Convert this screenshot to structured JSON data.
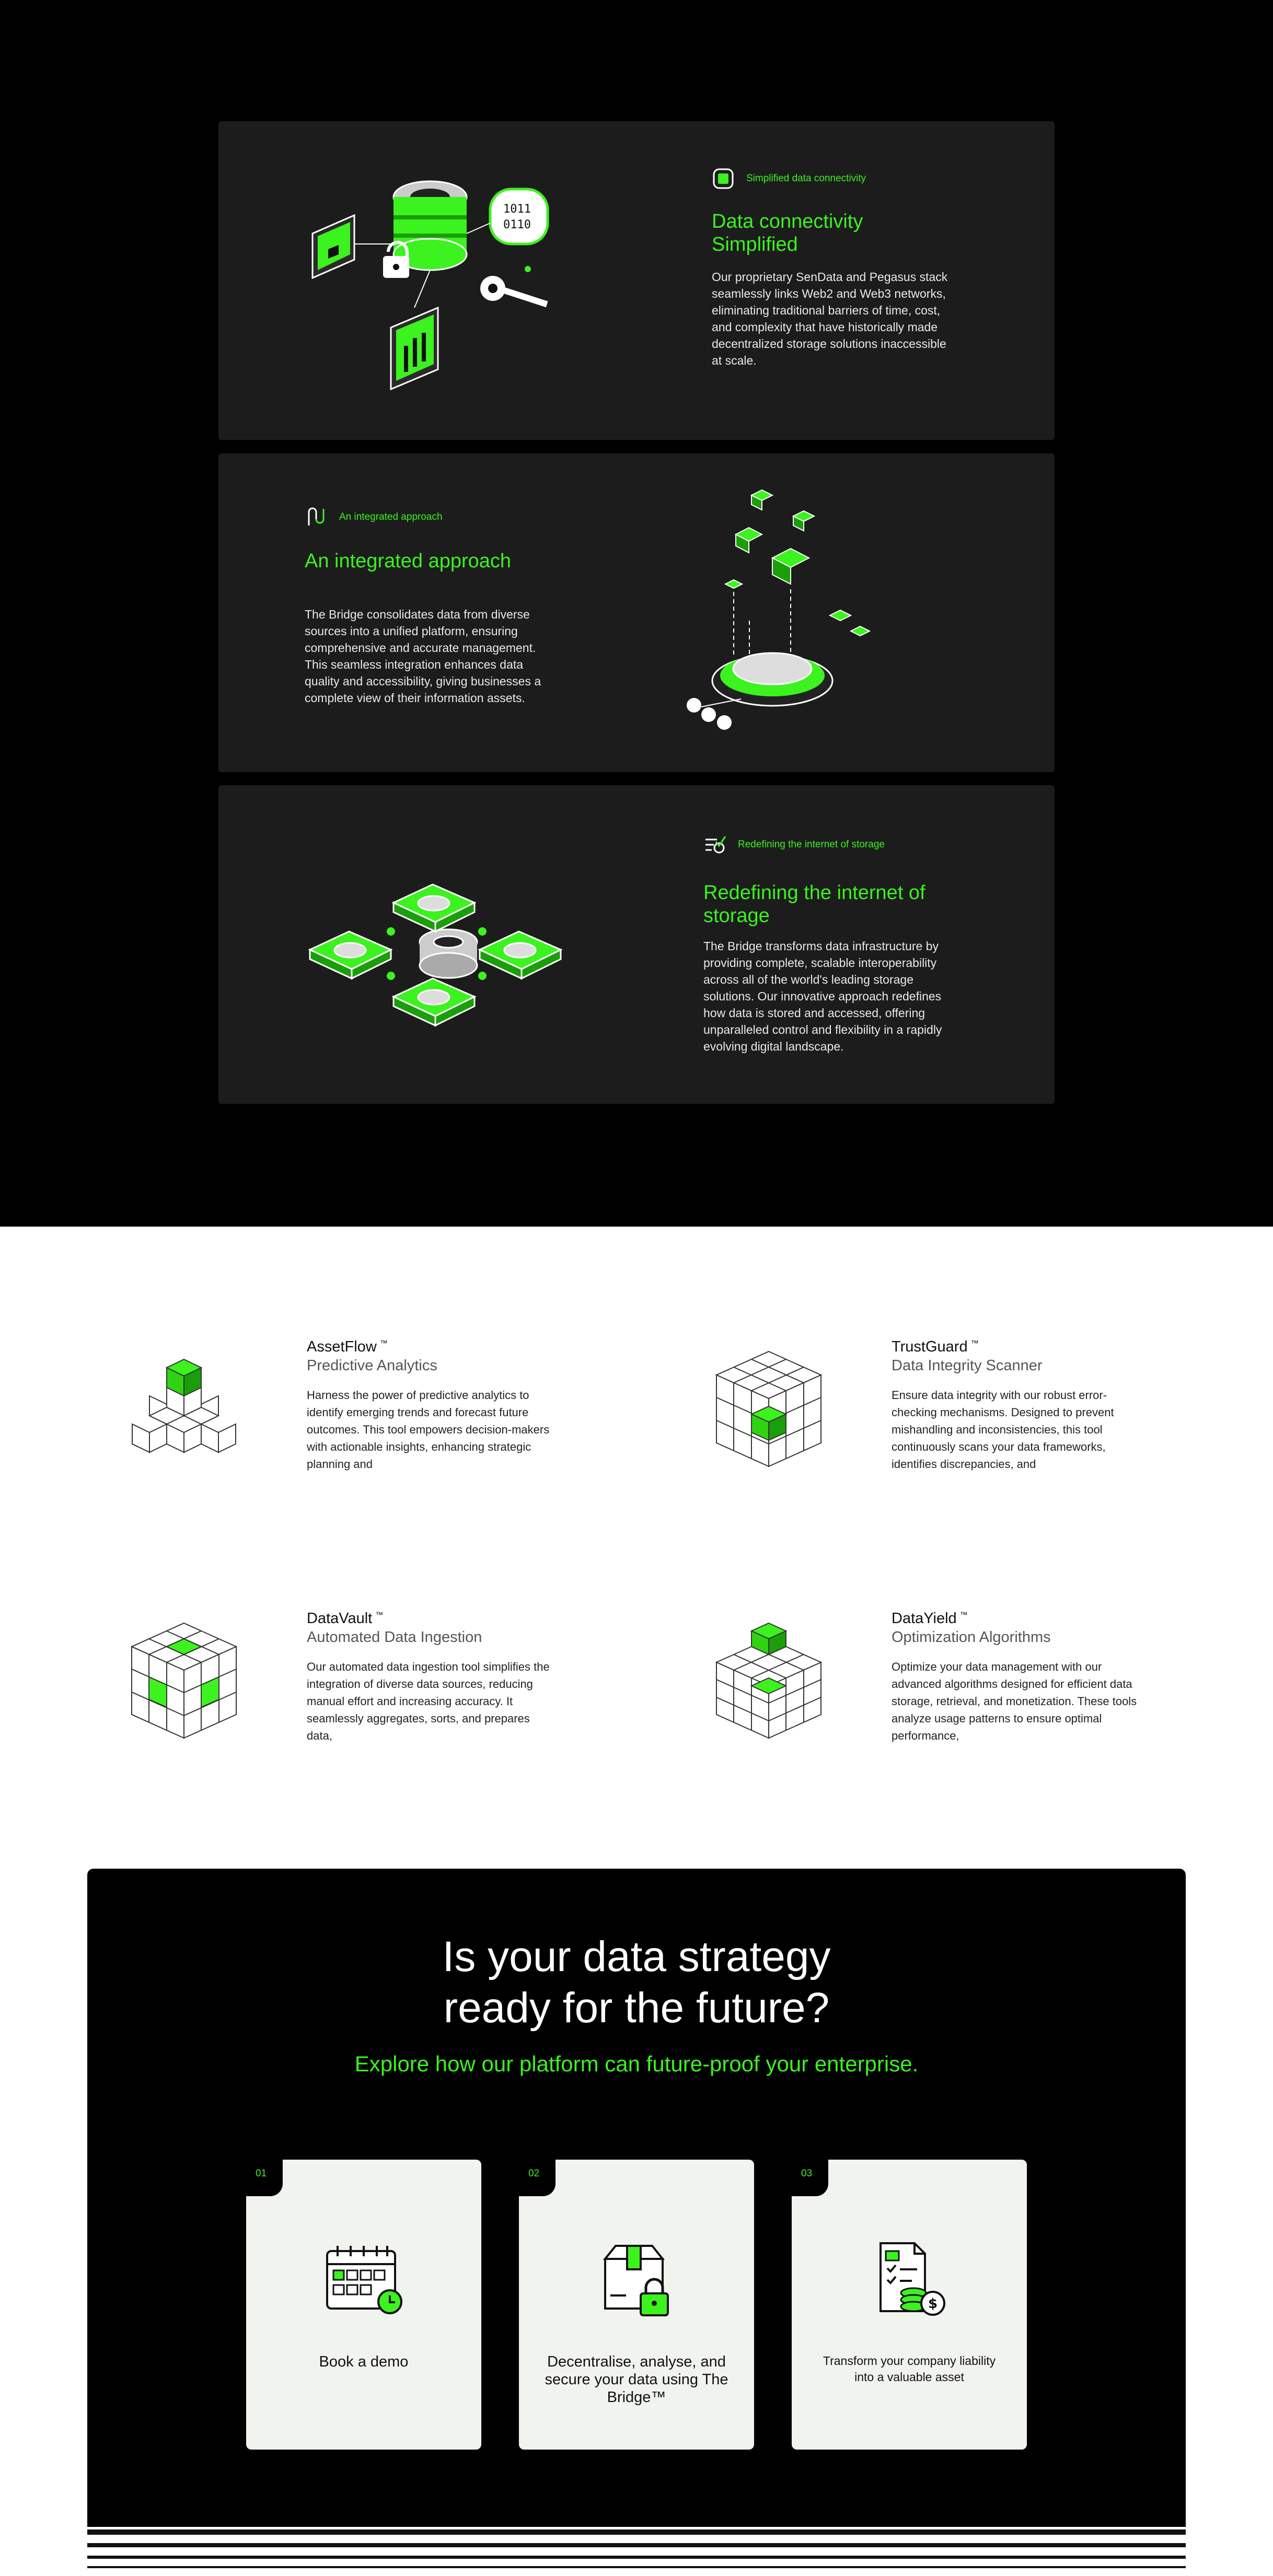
{
  "colors": {
    "accent": "#3cf21f",
    "panel": "#1c1c1c",
    "background_dark": "#000000"
  },
  "features": [
    {
      "tag": "Simplified data connectivity",
      "tag_icon": "chip-icon",
      "title": "Data connectivity Simplified",
      "description": "Our proprietary SenData and Pegasus stack seamlessly links Web2 and Web3 networks, eliminating traditional barriers of time, cost, and complexity that have historically made decentralized storage solutions inaccessible at scale."
    },
    {
      "tag": "An integrated approach",
      "tag_icon": "integration-icon",
      "title": "An integrated approach",
      "description": "The Bridge consolidates data from diverse sources into a unified platform, ensuring comprehensive and accurate management. This seamless integration enhances data quality and accessibility, giving businesses a complete view of their information assets."
    },
    {
      "tag": "Redefining the internet of storage",
      "tag_icon": "checklist-icon",
      "title": "Redefining the internet of storage",
      "description": "The Bridge transforms data infrastructure by providing complete, scalable interoperability across all of the world's leading storage solutions. Our innovative approach redefines how data is stored and accessed, offering unparalleled control and flexibility in a rapidly evolving digital landscape."
    }
  ],
  "products": [
    {
      "name": "AssetFlow",
      "tm": "™",
      "subtitle": "Predictive Analytics",
      "description": "Harness the power of predictive analytics to identify emerging trends and forecast future outcomes. This tool empowers decision-makers with actionable insights, enhancing strategic planning and"
    },
    {
      "name": "TrustGuard",
      "tm": "™",
      "subtitle": "Data Integrity Scanner",
      "description": "Ensure data integrity with our robust error-checking mechanisms. Designed to prevent mishandling and inconsistencies, this tool continuously scans your data frameworks, identifies discrepancies, and"
    },
    {
      "name": "DataVault",
      "tm": "™",
      "subtitle": "Automated Data Ingestion",
      "description": "Our automated data ingestion tool simplifies the integration of diverse data sources, reducing manual effort and increasing accuracy. It seamlessly aggregates, sorts, and prepares data,"
    },
    {
      "name": "DataYield",
      "tm": "™",
      "subtitle": "Optimization Algorithms",
      "description": "Optimize your data management with our advanced algorithms designed for efficient data storage, retrieval, and monetization. These tools analyze usage patterns to ensure optimal performance,"
    }
  ],
  "cta": {
    "title_line1": "Is your data strategy",
    "title_line2": "ready for the future?",
    "subtitle": "Explore how our platform can future-proof your enterprise.",
    "cards": [
      {
        "number": "01",
        "label": "Book a demo",
        "icon": "calendar-icon"
      },
      {
        "number": "02",
        "label": "Decentralise, analyse, and secure your data using The Bridge™",
        "icon": "secure-box-icon"
      },
      {
        "number": "03",
        "label": "Transform your company liability into a valuable asset",
        "icon": "document-coins-icon"
      }
    ]
  }
}
